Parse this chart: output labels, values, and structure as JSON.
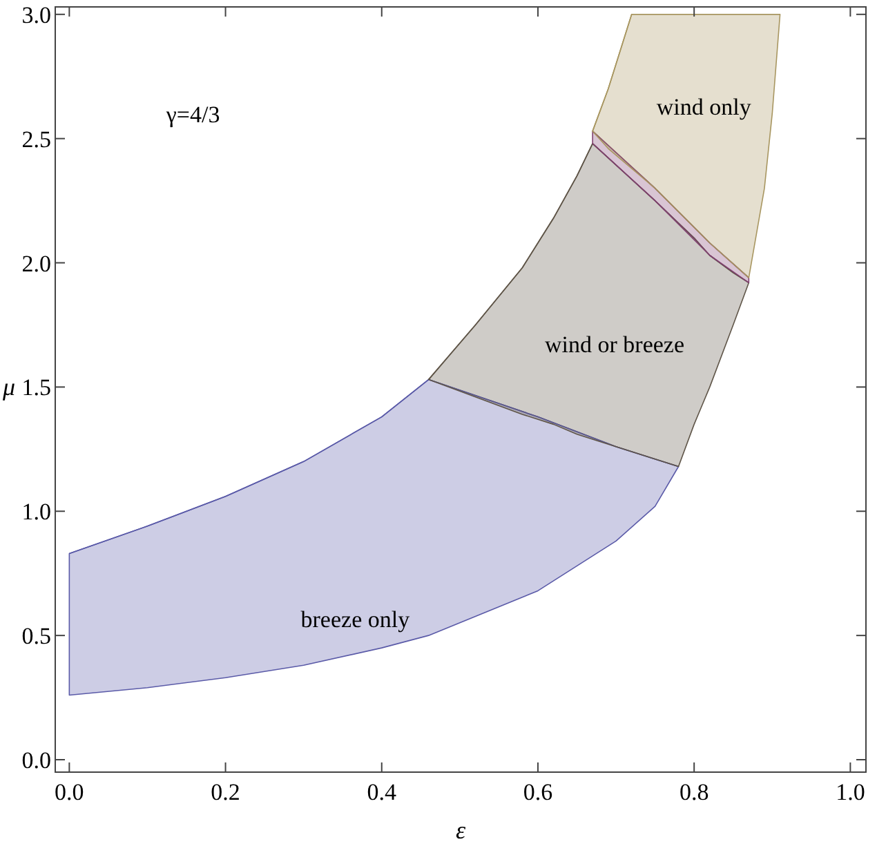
{
  "chart_data": {
    "type": "line",
    "xlabel": "ε",
    "ylabel": "μ",
    "xlim": [
      -0.018,
      1.02
    ],
    "ylim": [
      -0.05,
      3.03
    ],
    "xticks": [
      {
        "value": 0,
        "label": "0.0"
      },
      {
        "value": 0.2,
        "label": "0.2"
      },
      {
        "value": 0.4,
        "label": "0.4"
      },
      {
        "value": 0.6,
        "label": "0.6"
      },
      {
        "value": 0.8,
        "label": "0.8"
      },
      {
        "value": 1,
        "label": "1.0"
      }
    ],
    "yticks": [
      {
        "value": 0,
        "label": "0.0"
      },
      {
        "value": 0.5,
        "label": "0.5"
      },
      {
        "value": 1,
        "label": "1.0"
      },
      {
        "value": 1.5,
        "label": "1.5"
      },
      {
        "value": 2,
        "label": "2.0"
      },
      {
        "value": 2.5,
        "label": "2.5"
      },
      {
        "value": 3,
        "label": "3.0"
      }
    ],
    "grid": false,
    "series": [
      {
        "color": "#5a5aa8",
        "x": [
          0,
          0.1,
          0.2,
          0.3,
          0.4,
          0.46,
          0.6,
          0.7,
          0.75,
          0.78
        ],
        "values": [
          0.83,
          0.94,
          1.06,
          1.2,
          1.38,
          1.53,
          1.38,
          1.26,
          1.21,
          1.18
        ],
        "upper": [
          0.83,
          0.94,
          1.06,
          1.2,
          1.38,
          1.53,
          1.38,
          1.26,
          1.21,
          1.18
        ],
        "lower": [
          0.26,
          0.29,
          0.33,
          0.38,
          0.45,
          0.5,
          0.68,
          0.88,
          1.02,
          1.18
        ]
      },
      {
        "color": "#5f5548",
        "x": [
          0.46,
          0.52,
          0.58,
          0.62,
          0.65,
          0.67,
          0.75,
          0.78,
          0.8,
          0.82,
          0.85,
          0.87
        ],
        "values": [
          1.53,
          1.75,
          1.98,
          2.18,
          2.35,
          2.48,
          2.25,
          2.16,
          2.1,
          2.03,
          1.96,
          1.92
        ],
        "upper": [
          1.53,
          1.75,
          1.98,
          2.18,
          2.35,
          2.48,
          2.25,
          2.16,
          2.1,
          2.03,
          1.96,
          1.92
        ],
        "lower": [
          1.53,
          1.46,
          1.39,
          1.35,
          1.31,
          1.29,
          1.21,
          1.18,
          1.35,
          1.5,
          1.75,
          1.92
        ]
      },
      {
        "color": "#804070",
        "x": [
          0.67,
          0.75,
          0.82,
          0.87
        ],
        "values": [
          2.53,
          2.3,
          2.08,
          1.94
        ],
        "upper": [
          2.53,
          2.3,
          2.08,
          1.94
        ],
        "lower": [
          2.48,
          2.25,
          2.03,
          1.92
        ]
      },
      {
        "color": "#a89660",
        "x": [
          0.67,
          0.69,
          0.72,
          0.75,
          0.82,
          0.87,
          0.89,
          0.9,
          0.91
        ],
        "values": [
          2.53,
          2.7,
          3.0,
          3.0,
          3.0,
          3.0,
          3.0,
          3.0,
          3.0
        ],
        "upper": [
          2.53,
          2.7,
          3.0,
          3.0,
          3.0,
          3.0,
          3.0,
          3.0,
          3.0
        ],
        "lower": [
          2.53,
          2.46,
          2.38,
          2.3,
          2.08,
          1.94,
          2.3,
          2.6,
          3.0
        ]
      }
    ],
    "annotations": [
      "γ=4/3",
      "breeze only",
      "wind or breeze",
      "wind only"
    ]
  }
}
